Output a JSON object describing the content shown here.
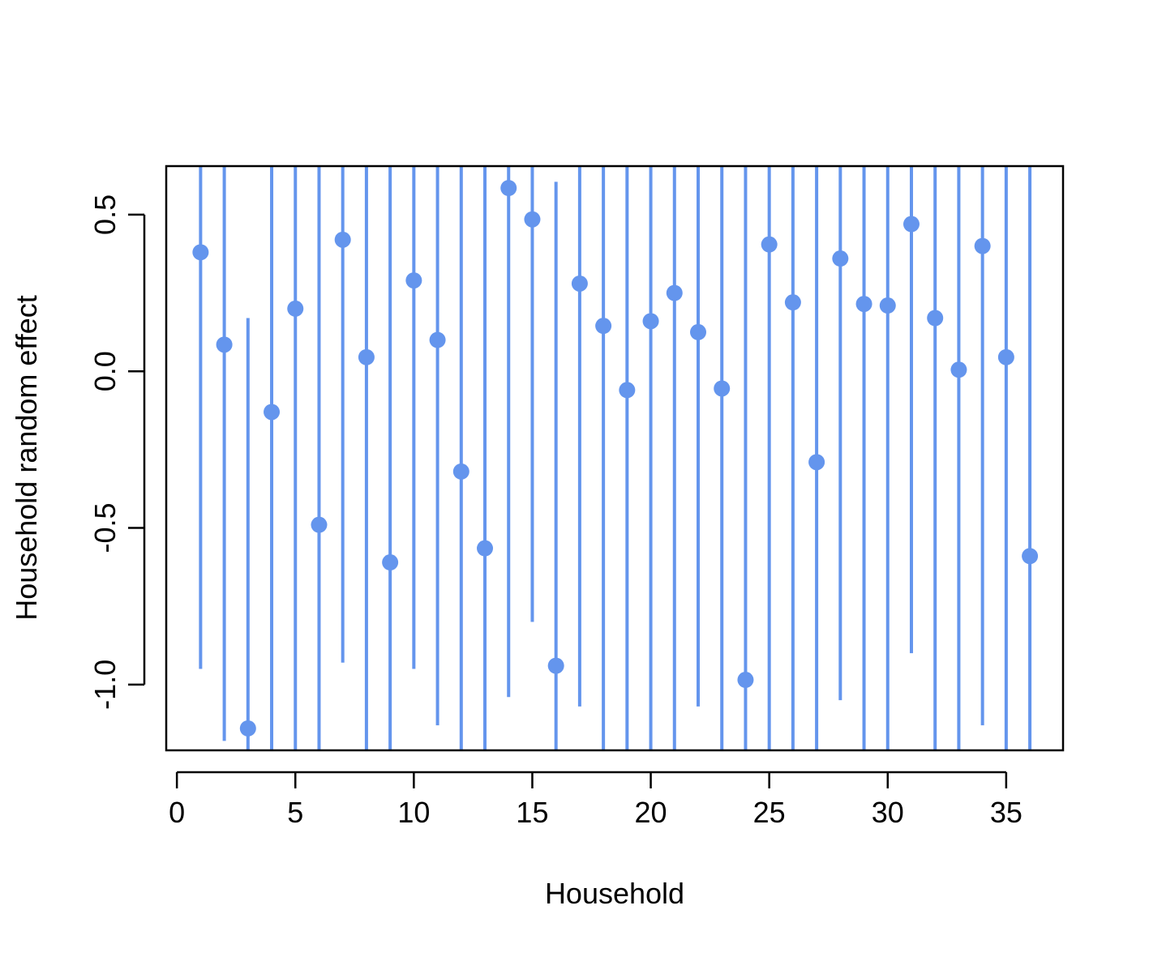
{
  "chart_data": {
    "type": "scatter",
    "title": "",
    "xlabel": "Household",
    "ylabel": "Household random effect",
    "xlim": [
      -0.45,
      37.4
    ],
    "ylim": [
      -1.21,
      0.655
    ],
    "x_ticks": [
      0,
      5,
      10,
      15,
      20,
      25,
      30,
      35
    ],
    "x_tick_labels": [
      "0",
      "5",
      "10",
      "15",
      "20",
      "25",
      "30",
      "35"
    ],
    "y_ticks": [
      -1.0,
      -0.5,
      0.0,
      0.5
    ],
    "y_tick_labels": [
      "-1.0",
      "-0.5",
      "0.0",
      "0.5"
    ],
    "grid": false,
    "legend": "none",
    "series_color": "#6495ed",
    "points": [
      {
        "x": 1,
        "y": 0.38,
        "lower": -0.95,
        "upper": 0.655
      },
      {
        "x": 2,
        "y": 0.085,
        "lower": -1.18,
        "upper": 0.655
      },
      {
        "x": 3,
        "y": -1.14,
        "lower": -1.21,
        "upper": 0.17
      },
      {
        "x": 4,
        "y": -0.13,
        "lower": -1.21,
        "upper": 0.655
      },
      {
        "x": 5,
        "y": 0.2,
        "lower": -1.21,
        "upper": 0.655
      },
      {
        "x": 6,
        "y": -0.49,
        "lower": -1.21,
        "upper": 0.655
      },
      {
        "x": 7,
        "y": 0.42,
        "lower": -0.93,
        "upper": 0.655
      },
      {
        "x": 8,
        "y": 0.045,
        "lower": -1.21,
        "upper": 0.655
      },
      {
        "x": 9,
        "y": -0.61,
        "lower": -1.21,
        "upper": 0.655
      },
      {
        "x": 10,
        "y": 0.29,
        "lower": -0.95,
        "upper": 0.655
      },
      {
        "x": 11,
        "y": 0.1,
        "lower": -1.13,
        "upper": 0.655
      },
      {
        "x": 12,
        "y": -0.32,
        "lower": -1.21,
        "upper": 0.655
      },
      {
        "x": 13,
        "y": -0.565,
        "lower": -1.21,
        "upper": 0.655
      },
      {
        "x": 14,
        "y": 0.585,
        "lower": -1.04,
        "upper": 0.655
      },
      {
        "x": 15,
        "y": 0.485,
        "lower": -0.8,
        "upper": 0.655
      },
      {
        "x": 16,
        "y": -0.94,
        "lower": -1.21,
        "upper": 0.605
      },
      {
        "x": 17,
        "y": 0.28,
        "lower": -1.07,
        "upper": 0.655
      },
      {
        "x": 18,
        "y": 0.145,
        "lower": -1.21,
        "upper": 0.655
      },
      {
        "x": 19,
        "y": -0.06,
        "lower": -1.21,
        "upper": 0.655
      },
      {
        "x": 20,
        "y": 0.16,
        "lower": -1.21,
        "upper": 0.655
      },
      {
        "x": 21,
        "y": 0.25,
        "lower": -1.21,
        "upper": 0.655
      },
      {
        "x": 22,
        "y": 0.125,
        "lower": -1.07,
        "upper": 0.655
      },
      {
        "x": 23,
        "y": -0.055,
        "lower": -1.21,
        "upper": 0.655
      },
      {
        "x": 24,
        "y": -0.985,
        "lower": -1.21,
        "upper": 0.655
      },
      {
        "x": 25,
        "y": 0.405,
        "lower": -1.21,
        "upper": 0.655
      },
      {
        "x": 26,
        "y": 0.22,
        "lower": -1.21,
        "upper": 0.655
      },
      {
        "x": 27,
        "y": -0.29,
        "lower": -1.21,
        "upper": 0.655
      },
      {
        "x": 28,
        "y": 0.36,
        "lower": -1.05,
        "upper": 0.655
      },
      {
        "x": 29,
        "y": 0.215,
        "lower": -1.21,
        "upper": 0.655
      },
      {
        "x": 30,
        "y": 0.21,
        "lower": -1.21,
        "upper": 0.655
      },
      {
        "x": 31,
        "y": 0.47,
        "lower": -0.9,
        "upper": 0.655
      },
      {
        "x": 32,
        "y": 0.17,
        "lower": -1.21,
        "upper": 0.655
      },
      {
        "x": 33,
        "y": 0.005,
        "lower": -1.21,
        "upper": 0.655
      },
      {
        "x": 34,
        "y": 0.4,
        "lower": -1.13,
        "upper": 0.655
      },
      {
        "x": 35,
        "y": 0.045,
        "lower": -1.21,
        "upper": 0.655
      },
      {
        "x": 36,
        "y": -0.59,
        "lower": -1.21,
        "upper": 0.655
      }
    ]
  }
}
